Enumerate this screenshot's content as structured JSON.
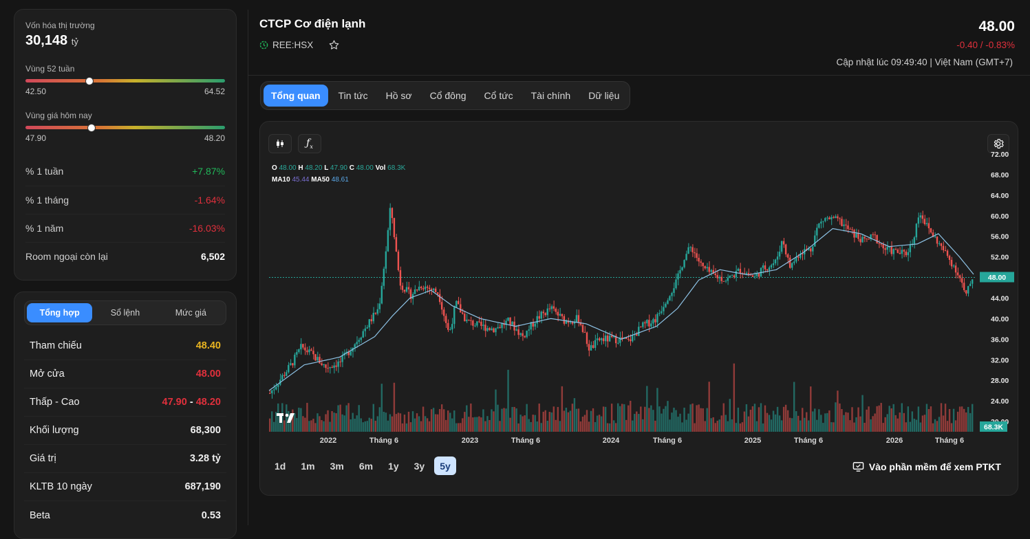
{
  "market_cap": {
    "label": "Vốn hóa thị trường",
    "value": "30,148",
    "unit": "tỷ"
  },
  "range_52w": {
    "label": "Vùng 52 tuần",
    "low": "42.50",
    "high": "64.52",
    "marker_fraction": 0.32
  },
  "range_today": {
    "label": "Vùng giá hôm nay",
    "low": "47.90",
    "high": "48.20",
    "marker_fraction": 0.33
  },
  "stats": [
    {
      "label": "% 1 tuần",
      "value": "+7.87%"
    },
    {
      "label": "% 1 tháng",
      "value": "-1.64%"
    },
    {
      "label": "% 1 năm",
      "value": "-16.03%"
    },
    {
      "label": "Room ngoại còn lại",
      "value": "6,502"
    }
  ],
  "summary_tabs": [
    "Tổng hợp",
    "Sổ lệnh",
    "Mức giá"
  ],
  "summary": {
    "ref_label": "Tham chiếu",
    "ref_value": "48.40",
    "open_label": "Mở cửa",
    "open_value": "48.00",
    "lowhigh_label": "Thấp - Cao",
    "low_value": "47.90",
    "sep": "-",
    "high_value": "48.20",
    "volume_label": "Khối lượng",
    "volume_value": "68,300",
    "turnover_label": "Giá trị",
    "turnover_value": "3.28 tỷ",
    "avg10_label": "KLTB 10 ngày",
    "avg10_value": "687,190",
    "beta_label": "Beta",
    "beta_value": "0.53"
  },
  "header": {
    "company": "CTCP Cơ điện lạnh",
    "ticker": "REE:HSX",
    "price": "48.00",
    "change": "-0.40 / -0.83%",
    "updated": "Cập nhật lúc 09:49:40 | Việt Nam (GMT+7)"
  },
  "tabs": [
    "Tổng quan",
    "Tin tức",
    "Hồ sơ",
    "Cổ đông",
    "Cổ tức",
    "Tài chính",
    "Dữ liệu"
  ],
  "legend": {
    "o_label": "O",
    "o": "48.00",
    "h_label": "H",
    "h": "48.20",
    "l_label": "L",
    "l": "47.90",
    "c_label": "C",
    "c": "48.00",
    "vol_label": "Vol",
    "vol": "68.3K",
    "ma10_label": "MA10",
    "ma10": "45.44",
    "ma50_label": "MA50",
    "ma50": "48.61"
  },
  "periods": [
    "1d",
    "1m",
    "3m",
    "6m",
    "1y",
    "3y",
    "5y"
  ],
  "ptkt_label": "Vào phần mềm để xem PTKT",
  "colors": {
    "up": "#26a69a",
    "down": "#ef5350",
    "accent": "#3a8dff",
    "negative": "#e0303c",
    "positive": "#21b85a",
    "reference": "#e8b421"
  },
  "chart_data": {
    "type": "candlestick",
    "y_ticks": [
      "72.00",
      "68.00",
      "64.00",
      "60.00",
      "56.00",
      "52.00",
      "48.00",
      "44.00",
      "40.00",
      "36.00",
      "32.00",
      "28.00",
      "24.00",
      "20.00"
    ],
    "x_ticks": [
      "2022",
      "Tháng 6",
      "2023",
      "Tháng 6",
      "2024",
      "Tháng 6",
      "2025",
      "Tháng 6",
      "2026",
      "Tháng 6"
    ],
    "last_price_label": "48.00",
    "last_volume_label": "68.3K",
    "ylim": [
      18,
      74
    ],
    "last_price": 48.0,
    "price_keypoints": [
      [
        0,
        25.5
      ],
      [
        0.03,
        31
      ],
      [
        0.045,
        34.5
      ],
      [
        0.06,
        33
      ],
      [
        0.08,
        30.5
      ],
      [
        0.1,
        31.5
      ],
      [
        0.12,
        35
      ],
      [
        0.14,
        39
      ],
      [
        0.155,
        42
      ],
      [
        0.165,
        53
      ],
      [
        0.172,
        62
      ],
      [
        0.185,
        47
      ],
      [
        0.2,
        44.5
      ],
      [
        0.215,
        46.5
      ],
      [
        0.225,
        46
      ],
      [
        0.24,
        45
      ],
      [
        0.255,
        37
      ],
      [
        0.265,
        43
      ],
      [
        0.28,
        39.5
      ],
      [
        0.3,
        38.5
      ],
      [
        0.32,
        38
      ],
      [
        0.34,
        39.5
      ],
      [
        0.36,
        36.5
      ],
      [
        0.38,
        40
      ],
      [
        0.4,
        42
      ],
      [
        0.42,
        39.5
      ],
      [
        0.44,
        40
      ],
      [
        0.455,
        34
      ],
      [
        0.47,
        36
      ],
      [
        0.5,
        36
      ],
      [
        0.51,
        35.5
      ],
      [
        0.53,
        38.5
      ],
      [
        0.55,
        40
      ],
      [
        0.565,
        44
      ],
      [
        0.58,
        47.5
      ],
      [
        0.59,
        52
      ],
      [
        0.6,
        54
      ],
      [
        0.615,
        50
      ],
      [
        0.63,
        48.5
      ],
      [
        0.65,
        47.5
      ],
      [
        0.67,
        49.5
      ],
      [
        0.69,
        48
      ],
      [
        0.7,
        49.5
      ],
      [
        0.72,
        51
      ],
      [
        0.73,
        55.5
      ],
      [
        0.74,
        50
      ],
      [
        0.755,
        53
      ],
      [
        0.77,
        53.5
      ],
      [
        0.78,
        58
      ],
      [
        0.79,
        59.5
      ],
      [
        0.81,
        59
      ],
      [
        0.83,
        56.5
      ],
      [
        0.845,
        55
      ],
      [
        0.86,
        56
      ],
      [
        0.875,
        53.5
      ],
      [
        0.89,
        53
      ],
      [
        0.905,
        52.5
      ],
      [
        0.915,
        55
      ],
      [
        0.925,
        61
      ],
      [
        0.935,
        58
      ],
      [
        0.945,
        56
      ],
      [
        0.96,
        53
      ],
      [
        0.975,
        50
      ],
      [
        0.985,
        47
      ],
      [
        0.99,
        44
      ],
      [
        1.0,
        48
      ]
    ],
    "ma_keypoints": [
      [
        0,
        26
      ],
      [
        0.05,
        31
      ],
      [
        0.1,
        32.5
      ],
      [
        0.15,
        36.5
      ],
      [
        0.175,
        40.5
      ],
      [
        0.2,
        44
      ],
      [
        0.23,
        45.5
      ],
      [
        0.26,
        42.5
      ],
      [
        0.3,
        40
      ],
      [
        0.35,
        38.5
      ],
      [
        0.4,
        40
      ],
      [
        0.45,
        39
      ],
      [
        0.5,
        36
      ],
      [
        0.55,
        38.5
      ],
      [
        0.58,
        42
      ],
      [
        0.61,
        47.5
      ],
      [
        0.64,
        49.5
      ],
      [
        0.68,
        48.5
      ],
      [
        0.72,
        49.5
      ],
      [
        0.76,
        53
      ],
      [
        0.8,
        57.5
      ],
      [
        0.84,
        56.5
      ],
      [
        0.88,
        54
      ],
      [
        0.92,
        54.5
      ],
      [
        0.95,
        56.5
      ],
      [
        0.98,
        52
      ],
      [
        1.0,
        48.6
      ]
    ]
  }
}
